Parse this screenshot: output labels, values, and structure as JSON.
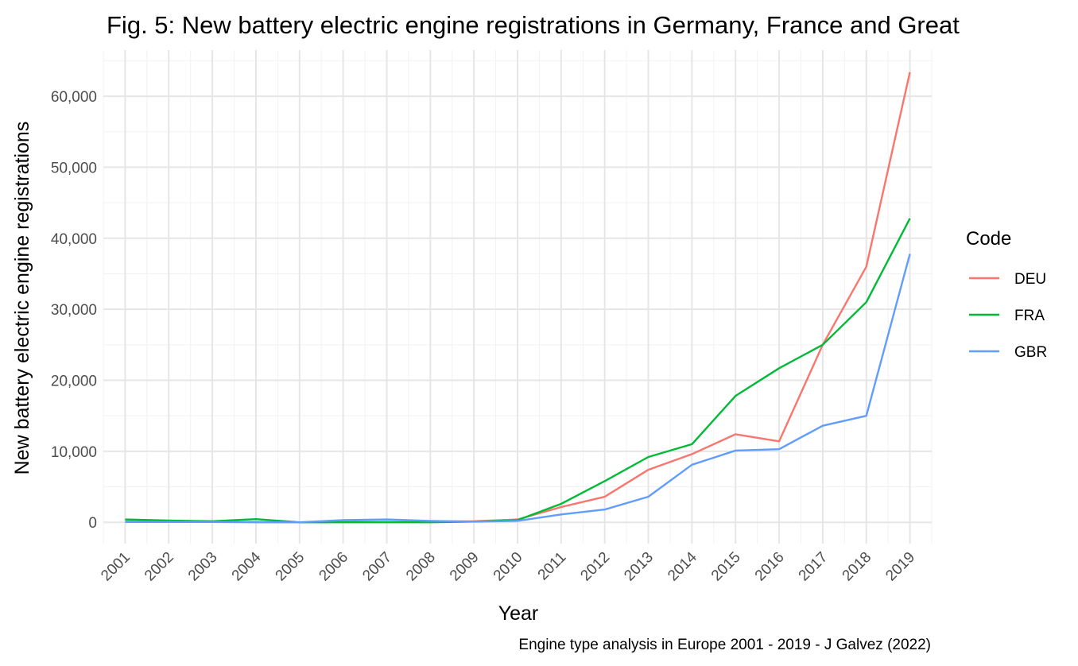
{
  "chart_data": {
    "type": "line",
    "title": "Fig. 5: New battery electric engine registrations in Germany, France and Great",
    "xlabel": "Year",
    "ylabel": "New battery electric engine registrations",
    "caption": "Engine type analysis in Europe 2001 - 2019 - J Galvez (2022)",
    "legend_title": "Code",
    "legend_position": "right",
    "grid": true,
    "x": [
      2001,
      2002,
      2003,
      2004,
      2005,
      2006,
      2007,
      2008,
      2009,
      2010,
      2011,
      2012,
      2013,
      2014,
      2015,
      2016,
      2017,
      2018,
      2019
    ],
    "x_tick_labels": [
      "2001",
      "2002",
      "2003",
      "2004",
      "2005",
      "2006",
      "2007",
      "2008",
      "2009",
      "2010",
      "2011",
      "2012",
      "2013",
      "2014",
      "2015",
      "2016",
      "2017",
      "2018",
      "2019"
    ],
    "y_ticks": [
      0,
      10000,
      20000,
      30000,
      40000,
      50000,
      60000
    ],
    "y_tick_labels": [
      "0",
      "10,000",
      "20,000",
      "30,000",
      "40,000",
      "50,000",
      "60,000"
    ],
    "ylim": [
      -3000,
      66500
    ],
    "series": [
      {
        "name": "DEU",
        "color": "#F8766D",
        "values": [
          100,
          100,
          50,
          50,
          0,
          50,
          50,
          100,
          150,
          400,
          2150,
          3600,
          7400,
          9600,
          12400,
          11400,
          25000,
          36000,
          63400
        ]
      },
      {
        "name": "FRA",
        "color": "#00BA38",
        "values": [
          400,
          250,
          150,
          450,
          0,
          0,
          0,
          0,
          100,
          300,
          2600,
          5800,
          9200,
          11000,
          17800,
          21700,
          25000,
          31000,
          42800
        ]
      },
      {
        "name": "GBR",
        "color": "#619CFF",
        "values": [
          50,
          50,
          50,
          0,
          0,
          300,
          400,
          200,
          100,
          200,
          1100,
          1800,
          3600,
          8100,
          10100,
          10300,
          13600,
          15000,
          37800
        ]
      }
    ]
  }
}
